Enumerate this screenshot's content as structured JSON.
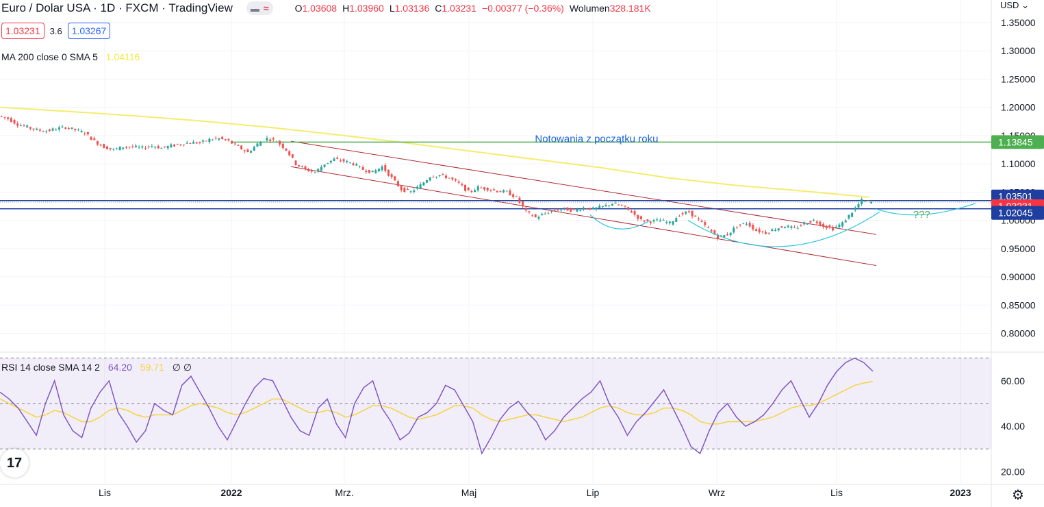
{
  "header": {
    "title": "Euro / Dolar USA · 1D · FXCM · TradingView",
    "ohlc": [
      {
        "k": "O",
        "v": "1.03608"
      },
      {
        "k": "H",
        "v": "1.03960"
      },
      {
        "k": "L",
        "v": "1.03136"
      },
      {
        "k": "C",
        "v": "1.03231"
      },
      {
        "k": "",
        "v": "−0.00377 (−0.36%)"
      },
      {
        "k": "Wolumen",
        "v": "328.181K"
      }
    ],
    "sell_price": "1.03231",
    "spread": "3.6",
    "buy_price": "1.03267"
  },
  "currency_label": "USD",
  "ma_legend": {
    "label": "MA 200 close 0 SMA 5",
    "value": "1.04116"
  },
  "rsi_legend": {
    "label": "RSI 14 close SMA 14 2",
    "rsi": "64.20",
    "sma": "59.71",
    "extra": "∅ ∅"
  },
  "logo_text": "17",
  "colors": {
    "up": "#26a69a",
    "down": "#ef5350",
    "ma": "#f5ec6a",
    "rsi": "#7e57c2",
    "rsi_ma": "#f5d33f",
    "channel": "#b22833",
    "arc": "#26c6da",
    "green_line": "#4caf50",
    "blue_line": "#1f3fa0",
    "annotation": "#1e63d6",
    "qmark": "#4caf50"
  },
  "chart_data": {
    "type": "candlestick",
    "y_axis": {
      "min": 0.78,
      "max": 1.39,
      "ticks": [
        "0.80000",
        "0.85000",
        "0.90000",
        "0.95000",
        "1.00000",
        "1.05000",
        "1.10000",
        "1.15000",
        "1.20000",
        "1.25000",
        "1.30000",
        "1.35000"
      ]
    },
    "x_axis_labels": [
      "Lis",
      "2022",
      "Mrz.",
      "Maj",
      "Lip",
      "Wrz",
      "Lis",
      "2023"
    ],
    "x_axis_bold": [
      "2022",
      "2023"
    ],
    "price_labels": [
      {
        "text": "1.13845",
        "value": 1.13845,
        "style": "green"
      },
      {
        "text": "1.03501",
        "value": 1.03501,
        "style": "navy"
      },
      {
        "text": "1.03231",
        "value": 1.03231,
        "style": "red"
      },
      {
        "text": "1.02045",
        "value": 1.02045,
        "style": "navy"
      }
    ],
    "annotations": [
      {
        "text": "Notowania z początku roku",
        "price": 1.147,
        "x_frac": 0.53
      },
      {
        "text": "???",
        "price": 1.0105,
        "x_frac": 0.918
      }
    ],
    "ohlc_key_closes": [
      1.185,
      1.18,
      1.17,
      1.165,
      1.16,
      1.158,
      1.162,
      1.165,
      1.16,
      1.155,
      1.14,
      1.13,
      1.125,
      1.13,
      1.13,
      1.128,
      1.132,
      1.128,
      1.132,
      1.135,
      1.138,
      1.137,
      1.143,
      1.145,
      1.14,
      1.13,
      1.12,
      1.135,
      1.145,
      1.14,
      1.125,
      1.1,
      1.09,
      1.085,
      1.1,
      1.108,
      1.105,
      1.1,
      1.09,
      1.085,
      1.095,
      1.075,
      1.055,
      1.05,
      1.062,
      1.078,
      1.08,
      1.075,
      1.065,
      1.05,
      1.058,
      1.056,
      1.052,
      1.05,
      1.04,
      1.015,
      1.005,
      1.012,
      1.018,
      1.02,
      1.017,
      1.022,
      1.02,
      1.024,
      1.03,
      1.025,
      1.015,
      1.0,
      0.998,
      1.0,
      0.995,
      1.01,
      1.015,
      1.0,
      0.985,
      0.97,
      0.975,
      0.99,
      0.995,
      0.982,
      0.978,
      0.985,
      0.99,
      0.985,
      0.995,
      1.0,
      0.99,
      0.985,
      0.995,
      1.015,
      1.035,
      1.032
    ],
    "ma200": [
      1.2,
      1.193,
      1.185,
      1.176,
      1.165,
      1.152,
      1.138,
      1.123,
      1.108,
      1.093,
      1.075,
      1.062,
      1.052,
      1.041
    ],
    "rsi": {
      "levels": [
        70,
        50,
        30
      ],
      "ticks": [
        "20.00",
        "40.00",
        "60.00"
      ],
      "range": [
        15,
        72
      ],
      "rsi_values": [
        55,
        52,
        48,
        42,
        36,
        50,
        60,
        45,
        38,
        35,
        48,
        55,
        60,
        46,
        40,
        33,
        38,
        50,
        47,
        45,
        58,
        62,
        55,
        48,
        40,
        34,
        42,
        50,
        57,
        61,
        60,
        52,
        44,
        38,
        36,
        48,
        52,
        41,
        35,
        50,
        57,
        60,
        48,
        42,
        34,
        37,
        44,
        46,
        50,
        58,
        56,
        49,
        42,
        28,
        35,
        43,
        48,
        51,
        46,
        42,
        34,
        38,
        44,
        48,
        52,
        55,
        60,
        50,
        44,
        36,
        42,
        46,
        51,
        56,
        48,
        40,
        31,
        28,
        38,
        46,
        50,
        44,
        40,
        42,
        45,
        50,
        56,
        60,
        52,
        44,
        50,
        58,
        64,
        68,
        70,
        68,
        64.2
      ],
      "sma_values": [
        52,
        50,
        48,
        46,
        44,
        45,
        47,
        46,
        44,
        42,
        42,
        44,
        47,
        48,
        47,
        45,
        44,
        45,
        45,
        45,
        47,
        49,
        50,
        49,
        48,
        46,
        45,
        46,
        48,
        50,
        52,
        52,
        50,
        48,
        46,
        46,
        47,
        46,
        44,
        45,
        47,
        49,
        49,
        48,
        46,
        44,
        43,
        44,
        45,
        47,
        49,
        49,
        48,
        45,
        43,
        42,
        43,
        44,
        45,
        45,
        44,
        43,
        42,
        43,
        44,
        46,
        48,
        49,
        48,
        46,
        45,
        45,
        46,
        48,
        48,
        47,
        45,
        42,
        41,
        41,
        42,
        42,
        42,
        42,
        43,
        44,
        46,
        48,
        49,
        49,
        50,
        52,
        54,
        56,
        58,
        59,
        59.71
      ]
    }
  }
}
